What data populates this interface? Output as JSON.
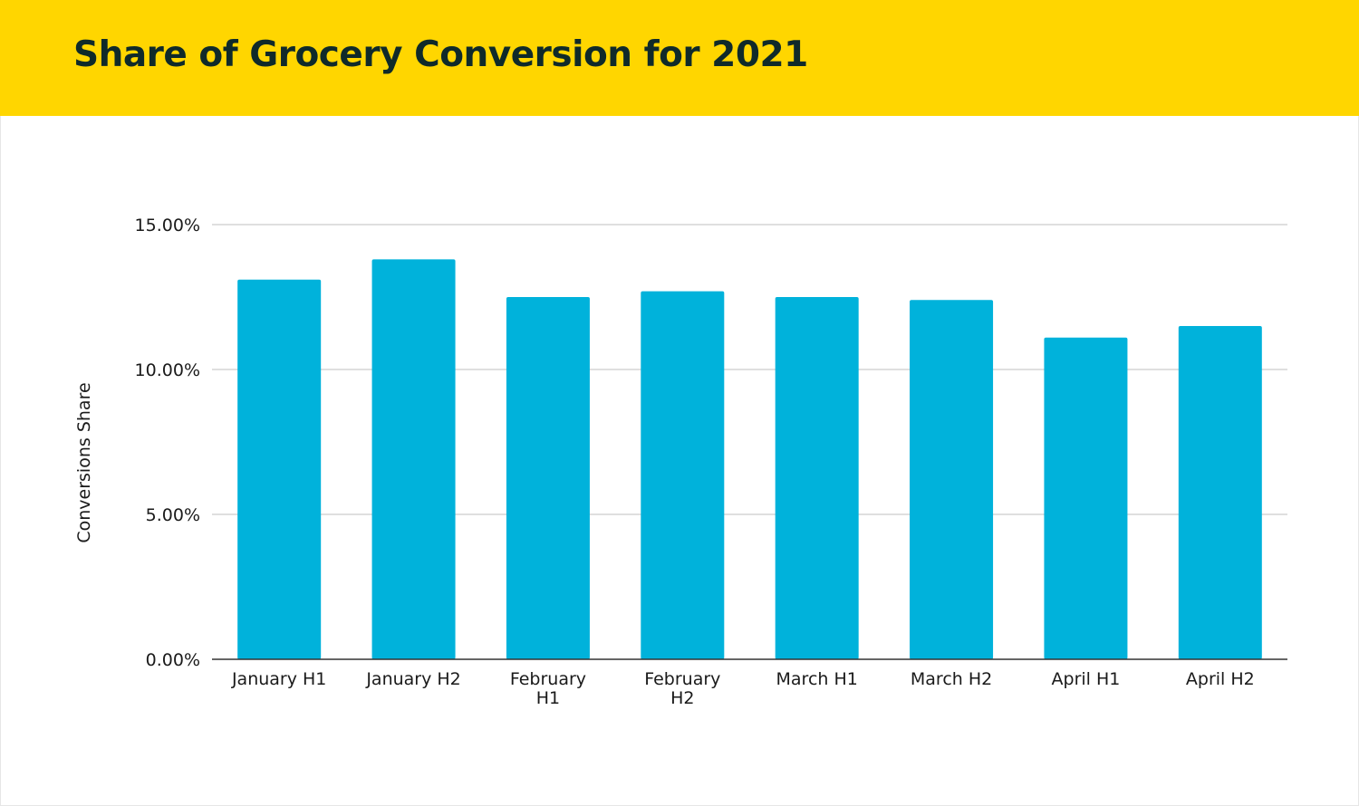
{
  "header": {
    "title": "Share of Grocery Conversion for 2021",
    "background_color": "#FFD600",
    "title_color": "#0f2a2a"
  },
  "chart_data": {
    "type": "bar",
    "title": "Share of Grocery Conversion for 2021",
    "categories": [
      [
        "January H1"
      ],
      [
        "January H2"
      ],
      [
        "February",
        "H1"
      ],
      [
        "February",
        "H2"
      ],
      [
        "March H1"
      ],
      [
        "March H2"
      ],
      [
        "April H1"
      ],
      [
        "April H2"
      ]
    ],
    "values": [
      13.1,
      13.8,
      12.5,
      12.7,
      12.5,
      12.4,
      11.1,
      11.5
    ],
    "ylabel": "Conversions Share",
    "xlabel": "",
    "ylim": [
      0,
      15
    ],
    "yticks": [
      0,
      5,
      10,
      15
    ],
    "ytick_labels": [
      "0.00%",
      "5.00%",
      "10.00%",
      "15.00%"
    ],
    "grid": true,
    "legend": "none",
    "bar_color": "#00B2DB",
    "grid_color": "#cccccc",
    "axis_color": "#333333"
  }
}
